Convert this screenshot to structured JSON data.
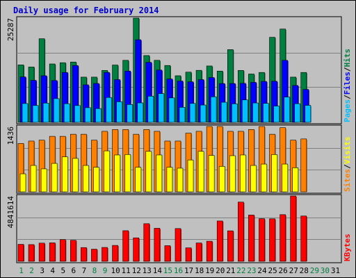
{
  "chart_data": {
    "type": "bar",
    "title": "Daily usage for February 2014",
    "categories": [
      "1",
      "2",
      "3",
      "4",
      "5",
      "6",
      "7",
      "8",
      "9",
      "10",
      "11",
      "12",
      "13",
      "14",
      "15",
      "16",
      "17",
      "18",
      "19",
      "20",
      "21",
      "22",
      "23",
      "24",
      "25",
      "26",
      "27",
      "28",
      "29",
      "30",
      "31"
    ],
    "weekend_days": [
      "1",
      "2",
      "8",
      "9",
      "15",
      "16",
      "22",
      "23",
      "29",
      "30"
    ],
    "panels": [
      {
        "id": "hits",
        "ymax_label": "25287",
        "ymax": 25287,
        "series": [
          {
            "name": "Hits",
            "color": "#008040",
            "values": [
              13930,
              13420,
              20280,
              14160,
              14460,
              14630,
              10970,
              10970,
              12590,
              13900,
              15040,
              25287,
              16200,
              15040,
              13790,
              11300,
              12180,
              12610,
              13670,
              12430,
              17640,
              12590,
              11720,
              12100,
              20630,
              22630,
              10970,
              12100,
              null,
              null,
              null
            ]
          },
          {
            "name": "Files",
            "color": "#0000ff",
            "values": [
              11020,
              10190,
              11300,
              10140,
              12100,
              13780,
              9100,
              9420,
              12100,
              10360,
              12430,
              20040,
              14560,
              12680,
              10520,
              10020,
              9840,
              10360,
              10860,
              9410,
              9420,
              9460,
              9700,
              9930,
              9960,
              15040,
              8940,
              7980,
              null,
              null,
              null
            ]
          },
          {
            "name": "Pages",
            "color": "#00c0ff",
            "values": [
              4560,
              4090,
              4660,
              5750,
              4520,
              4080,
              3560,
              3340,
              6030,
              5000,
              4320,
              4720,
              6340,
              6980,
              5930,
              3650,
              4590,
              4200,
              6200,
              4880,
              4490,
              5440,
              4700,
              4600,
              3950,
              6130,
              4520,
              4120,
              null,
              null,
              null
            ]
          }
        ],
        "legend": [
          "Pages",
          "/",
          "Files",
          "/",
          "Hits"
        ],
        "legend_colors": [
          "#00c0ff",
          "#000000",
          "#0000ff",
          "#000000",
          "#008040"
        ]
      },
      {
        "id": "sites",
        "ymax_label": "1436",
        "ymax": 1436,
        "series": [
          {
            "name": "Sites",
            "color": "#ff8000",
            "values": [
              1063,
              1116,
              1136,
              1220,
              1220,
              1266,
              1266,
              1136,
              1330,
              1370,
              1370,
              1266,
              1370,
              1330,
              1116,
              1116,
              1290,
              1330,
              1436,
              1436,
              1330,
              1330,
              1370,
              1436,
              1266,
              1410,
              1136,
              1163,
              null,
              null,
              null
            ]
          },
          {
            "name": "Visits",
            "color": "#ffff00",
            "values": [
              396,
              580,
              505,
              625,
              770,
              735,
              580,
              540,
              900,
              810,
              820,
              540,
              890,
              810,
              540,
              520,
              700,
              890,
              800,
              560,
              795,
              810,
              580,
              610,
              820,
              610,
              530,
              null,
              null,
              null,
              null
            ]
          }
        ],
        "legend": [
          "Sites",
          "/",
          "Visits"
        ],
        "legend_colors": [
          "#ff8000",
          "#000000",
          "#ffff00"
        ]
      },
      {
        "id": "kbytes",
        "ymax_label": "4841614",
        "ymax": 4841614,
        "series": [
          {
            "name": "KBytes",
            "color": "#ff0000",
            "values": [
              1260000,
              1240000,
              1350000,
              1370000,
              1610000,
              1560000,
              1020000,
              900000,
              1030000,
              1180000,
              2270000,
              1740000,
              2790000,
              2450000,
              1160000,
              2430000,
              1000000,
              1360000,
              1490000,
              2990000,
              2260000,
              4390000,
              3430000,
              3160000,
              3150000,
              3460000,
              4841614,
              3360000,
              null,
              null,
              null
            ]
          }
        ],
        "legend": [
          "KBytes"
        ],
        "legend_colors": [
          "#ff0000"
        ]
      }
    ]
  }
}
